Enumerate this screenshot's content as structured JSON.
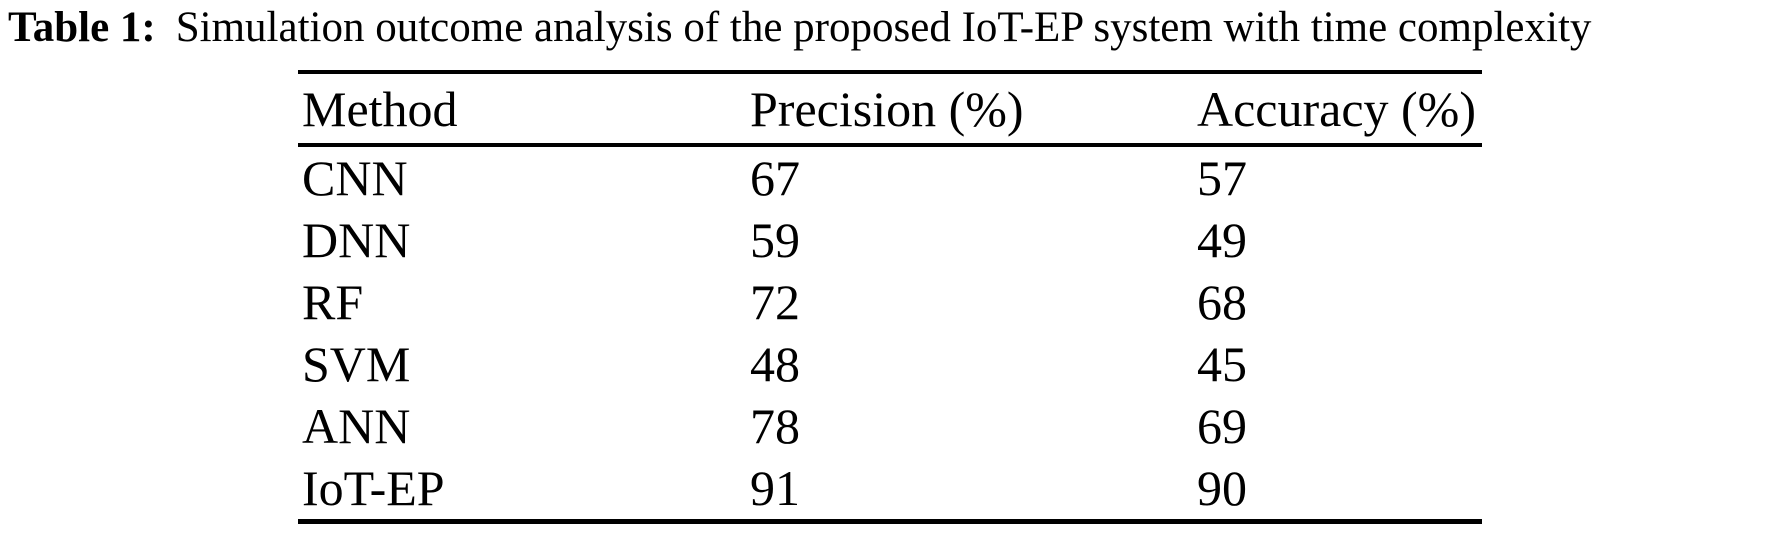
{
  "caption": {
    "label": "Table 1:",
    "text": "Simulation outcome analysis of the proposed IoT-EP system with time complexity"
  },
  "table": {
    "columns": [
      "Method",
      "Precision (%)",
      "Accuracy (%)"
    ],
    "rows": [
      [
        "CNN",
        "67",
        "57"
      ],
      [
        "DNN",
        "59",
        "49"
      ],
      [
        "RF",
        "72",
        "68"
      ],
      [
        "SVM",
        "48",
        "45"
      ],
      [
        "ANN",
        "78",
        "69"
      ],
      [
        "IoT-EP",
        "91",
        "90"
      ]
    ]
  },
  "colors": {
    "text": "#000000",
    "background": "#ffffff",
    "rule": "#000000"
  }
}
